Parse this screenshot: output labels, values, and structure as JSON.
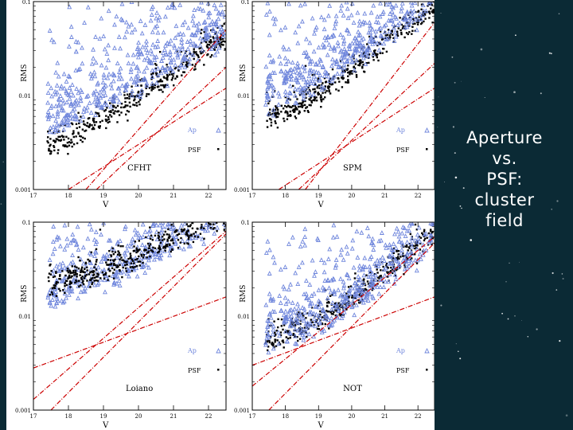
{
  "slide": {
    "title_lines": [
      "Aperture",
      "vs.",
      "PSF:",
      "cluster",
      "field"
    ]
  },
  "colors": {
    "background": "#0b2a35",
    "ap_points": "#6f86dc",
    "psf_points": "#000000",
    "reference_lines": "#cc0000"
  },
  "chart_data": [
    {
      "type": "scatter",
      "title": "",
      "label": "CFHT",
      "xlabel": "V",
      "ylabel": "RMS",
      "log_y": true,
      "ylim": [
        0.001,
        0.1
      ],
      "xlim": [
        17,
        22.5
      ],
      "x_ticks": [
        "17",
        "18",
        "19",
        "20",
        "21",
        "22"
      ],
      "y_ticks": [
        "0.1",
        "0.01",
        "0.001"
      ],
      "legend": [
        "Ap",
        "PSF"
      ],
      "legend_position": "lower-right",
      "ap_trend": [
        [
          17.5,
          0.004
        ],
        [
          18,
          0.005
        ],
        [
          19,
          0.007
        ],
        [
          20,
          0.011
        ],
        [
          21,
          0.018
        ],
        [
          22,
          0.03
        ],
        [
          22.5,
          0.04
        ]
      ],
      "psf_trend": [
        [
          17.5,
          0.0025
        ],
        [
          18,
          0.003
        ],
        [
          19,
          0.005
        ],
        [
          20,
          0.0085
        ],
        [
          21,
          0.015
        ],
        [
          22,
          0.028
        ],
        [
          22.5,
          0.038
        ]
      ],
      "reference_lines": [
        [
          [
            18.5,
            0.001
          ],
          [
            22.5,
            0.05
          ]
        ],
        [
          [
            18.0,
            0.001
          ],
          [
            22.5,
            0.012
          ]
        ],
        [
          [
            18.8,
            0.001
          ],
          [
            22.5,
            0.02
          ]
        ]
      ]
    },
    {
      "type": "scatter",
      "title": "",
      "label": "SPM",
      "xlabel": "V",
      "ylabel": "RMS",
      "log_y": true,
      "ylim": [
        0.001,
        0.1
      ],
      "xlim": [
        17,
        22.5
      ],
      "x_ticks": [
        "17",
        "18",
        "19",
        "20",
        "21",
        "22"
      ],
      "y_ticks": [
        "0.1",
        "0.01",
        "0.001"
      ],
      "legend": [
        "Ap",
        "PSF"
      ],
      "legend_position": "lower-right",
      "ap_trend": [
        [
          17,
          0.006
        ],
        [
          18,
          0.008
        ],
        [
          19,
          0.012
        ],
        [
          20,
          0.02
        ],
        [
          21,
          0.035
        ],
        [
          22,
          0.065
        ],
        [
          22.5,
          0.085
        ]
      ],
      "psf_trend": [
        [
          17,
          0.0045
        ],
        [
          18,
          0.006
        ],
        [
          19,
          0.009
        ],
        [
          20,
          0.016
        ],
        [
          21,
          0.03
        ],
        [
          22,
          0.058
        ],
        [
          22.5,
          0.08
        ]
      ],
      "reference_lines": [
        [
          [
            18.6,
            0.001
          ],
          [
            22.5,
            0.06
          ]
        ],
        [
          [
            17.8,
            0.001
          ],
          [
            22.5,
            0.012
          ]
        ],
        [
          [
            18.4,
            0.001
          ],
          [
            22.5,
            0.022
          ]
        ]
      ]
    },
    {
      "type": "scatter",
      "title": "",
      "label": "Loiano",
      "xlabel": "V",
      "ylabel": "RMS",
      "log_y": true,
      "ylim": [
        0.001,
        0.1
      ],
      "xlim": [
        17,
        22.5
      ],
      "x_ticks": [
        "17",
        "18",
        "19",
        "20",
        "21",
        "22"
      ],
      "y_ticks": [
        "0.1",
        "0.01",
        "0.001"
      ],
      "legend": [
        "Ap",
        "PSF"
      ],
      "legend_position": "lower-right",
      "ap_trend": [
        [
          17,
          0.012
        ],
        [
          18,
          0.015
        ],
        [
          19,
          0.02
        ],
        [
          20,
          0.03
        ],
        [
          21,
          0.048
        ],
        [
          22,
          0.075
        ],
        [
          22.5,
          0.095
        ]
      ],
      "psf_trend": [
        [
          17,
          0.017
        ],
        [
          18,
          0.021
        ],
        [
          19,
          0.027
        ],
        [
          20,
          0.038
        ],
        [
          21,
          0.058
        ],
        [
          22,
          0.088
        ],
        [
          22.5,
          0.1
        ]
      ],
      "reference_lines": [
        [
          [
            17,
            0.0013
          ],
          [
            22.5,
            0.08
          ]
        ],
        [
          [
            17.5,
            0.001
          ],
          [
            22.5,
            0.075
          ]
        ],
        [
          [
            17,
            0.0028
          ],
          [
            22.5,
            0.016
          ]
        ]
      ]
    },
    {
      "type": "scatter",
      "title": "",
      "label": "NOT",
      "xlabel": "V",
      "ylabel": "RMS",
      "log_y": true,
      "ylim": [
        0.001,
        0.1
      ],
      "xlim": [
        17,
        22.5
      ],
      "x_ticks": [
        "17",
        "18",
        "19",
        "20",
        "21",
        "22"
      ],
      "y_ticks": [
        "0.1",
        "0.01",
        "0.001"
      ],
      "legend": [
        "Ap",
        "PSF"
      ],
      "legend_position": "lower-right",
      "ap_trend": [
        [
          17,
          0.004
        ],
        [
          18,
          0.005
        ],
        [
          19,
          0.007
        ],
        [
          20,
          0.011
        ],
        [
          21,
          0.02
        ],
        [
          22,
          0.04
        ],
        [
          22.5,
          0.055
        ]
      ],
      "psf_trend": [
        [
          17,
          0.0042
        ],
        [
          18,
          0.0055
        ],
        [
          19,
          0.008
        ],
        [
          20,
          0.013
        ],
        [
          21,
          0.025
        ],
        [
          22,
          0.05
        ],
        [
          22.5,
          0.068
        ]
      ],
      "reference_lines": [
        [
          [
            17,
            0.0018
          ],
          [
            22.5,
            0.07
          ]
        ],
        [
          [
            17.5,
            0.001
          ],
          [
            22.5,
            0.06
          ]
        ],
        [
          [
            17,
            0.003
          ],
          [
            22.5,
            0.016
          ]
        ]
      ]
    }
  ]
}
